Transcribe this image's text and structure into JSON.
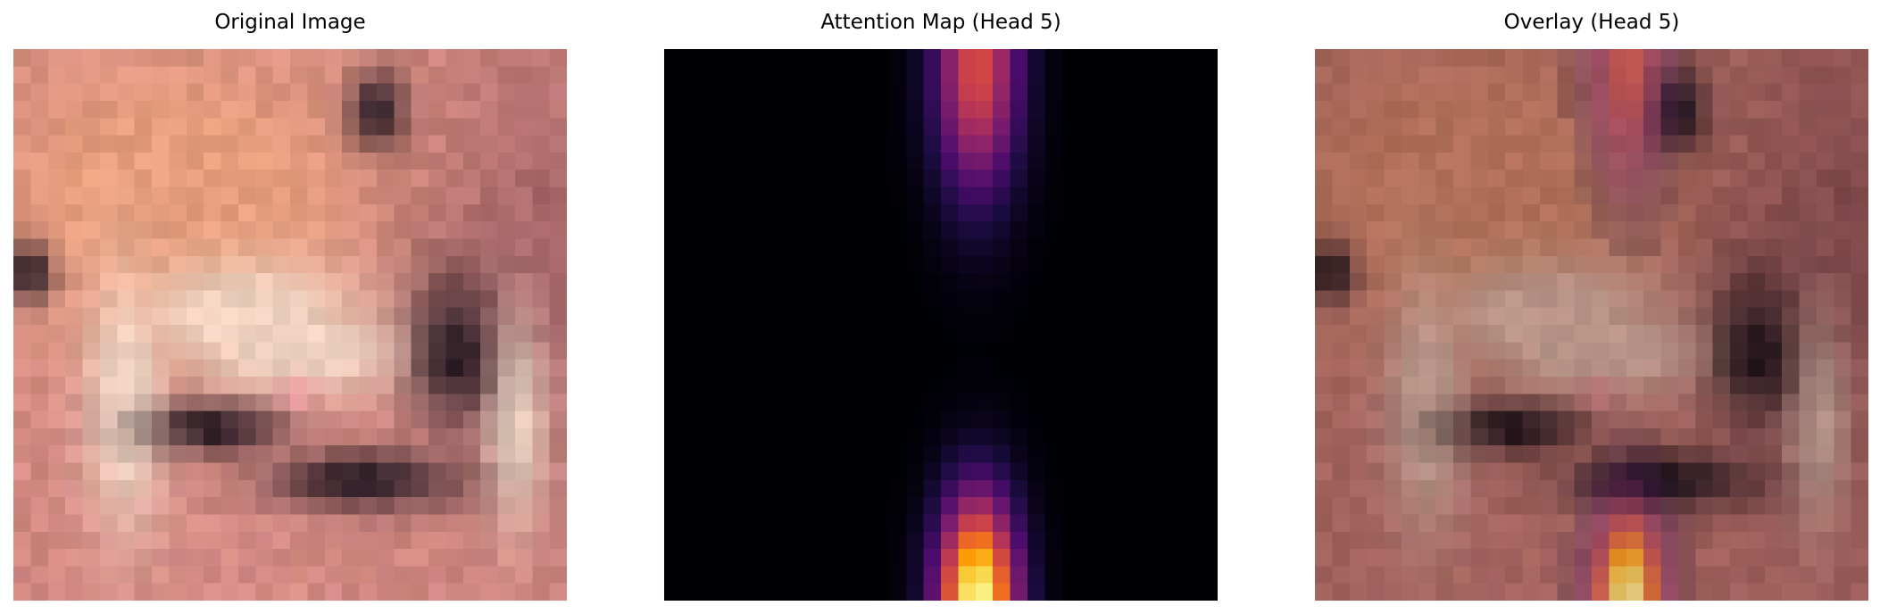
{
  "figure": {
    "panels": [
      {
        "title": "Original Image"
      },
      {
        "title": "Attention Map (Head 5)"
      },
      {
        "title": "Overlay (Head 5)"
      }
    ]
  },
  "colors": {
    "background": "#ffffff",
    "title_text": "#000000",
    "image_tones": [
      "#d08a78",
      "#e6a07a",
      "#f0d6c4",
      "#8a4f55",
      "#231620"
    ],
    "attention_colormap": [
      "#000004",
      "#1b0c41",
      "#4a0c6b",
      "#781c6d",
      "#a52c60",
      "#cf4446",
      "#ed6925",
      "#fb9b06",
      "#f7d13d",
      "#fcffa4"
    ]
  },
  "icons": {
    "original": "frog-pixelated-image",
    "attention": "attention-heatmap",
    "overlay": "overlay-heatmap"
  }
}
